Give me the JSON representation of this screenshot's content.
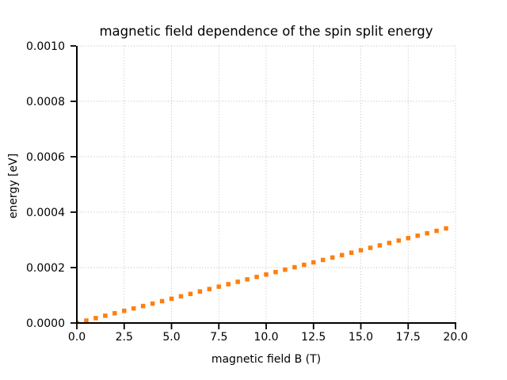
{
  "chart_data": {
    "type": "scatter",
    "title": "magnetic field dependence of the spin split energy",
    "xlabel": "magnetic field B (T)",
    "ylabel": "energy [eV]",
    "xlim": [
      0,
      20
    ],
    "ylim": [
      0,
      0.001
    ],
    "grid": true,
    "grid_style": "dotted",
    "legend": "none",
    "marker": "square",
    "marker_size_px": 5.5,
    "x": [
      0,
      0.5,
      1,
      1.5,
      2,
      2.5,
      3,
      3.5,
      4,
      4.5,
      5,
      5.5,
      6,
      6.5,
      7,
      7.5,
      8,
      8.5,
      9,
      9.5,
      10,
      10.5,
      11,
      11.5,
      12,
      12.5,
      13,
      13.5,
      14,
      14.5,
      15,
      15.5,
      16,
      16.5,
      17,
      17.5,
      18,
      18.5,
      19,
      19.5
    ],
    "y": [
      0,
      8.75e-06,
      1.75e-05,
      2.625e-05,
      3.5e-05,
      4.375e-05,
      5.25e-05,
      6.125e-05,
      7e-05,
      7.875e-05,
      8.75e-05,
      9.625e-05,
      0.000105,
      0.00011375,
      0.0001225,
      0.00013125,
      0.00014,
      0.00014875,
      0.0001575,
      0.00016625,
      0.000175,
      0.00018375,
      0.0001925,
      0.00020125,
      0.00021,
      0.00021875,
      0.0002275,
      0.00023625,
      0.000245,
      0.00025375,
      0.0002625,
      0.00027125,
      0.00028,
      0.00028875,
      0.0002975,
      0.00030625,
      0.000315,
      0.00032375,
      0.0003325,
      0.00034125
    ],
    "x_ticks": {
      "values": [
        0,
        2.5,
        5,
        7.5,
        10,
        12.5,
        15,
        17.5,
        20
      ],
      "labels": [
        "0.0",
        "2.5",
        "5.0",
        "7.5",
        "10.0",
        "12.5",
        "15.0",
        "17.5",
        "20.0"
      ]
    },
    "y_ticks": {
      "values": [
        0,
        0.0002,
        0.0004,
        0.0006,
        0.0008,
        0.001
      ],
      "labels": [
        "0.0000",
        "0.0002",
        "0.0004",
        "0.0006",
        "0.0008",
        "0.0010"
      ]
    }
  },
  "colors": {
    "marker": "#ff7f0e",
    "grid": "#b7b7b7",
    "axis": "#000000",
    "text": "#000000",
    "background": "#ffffff"
  }
}
